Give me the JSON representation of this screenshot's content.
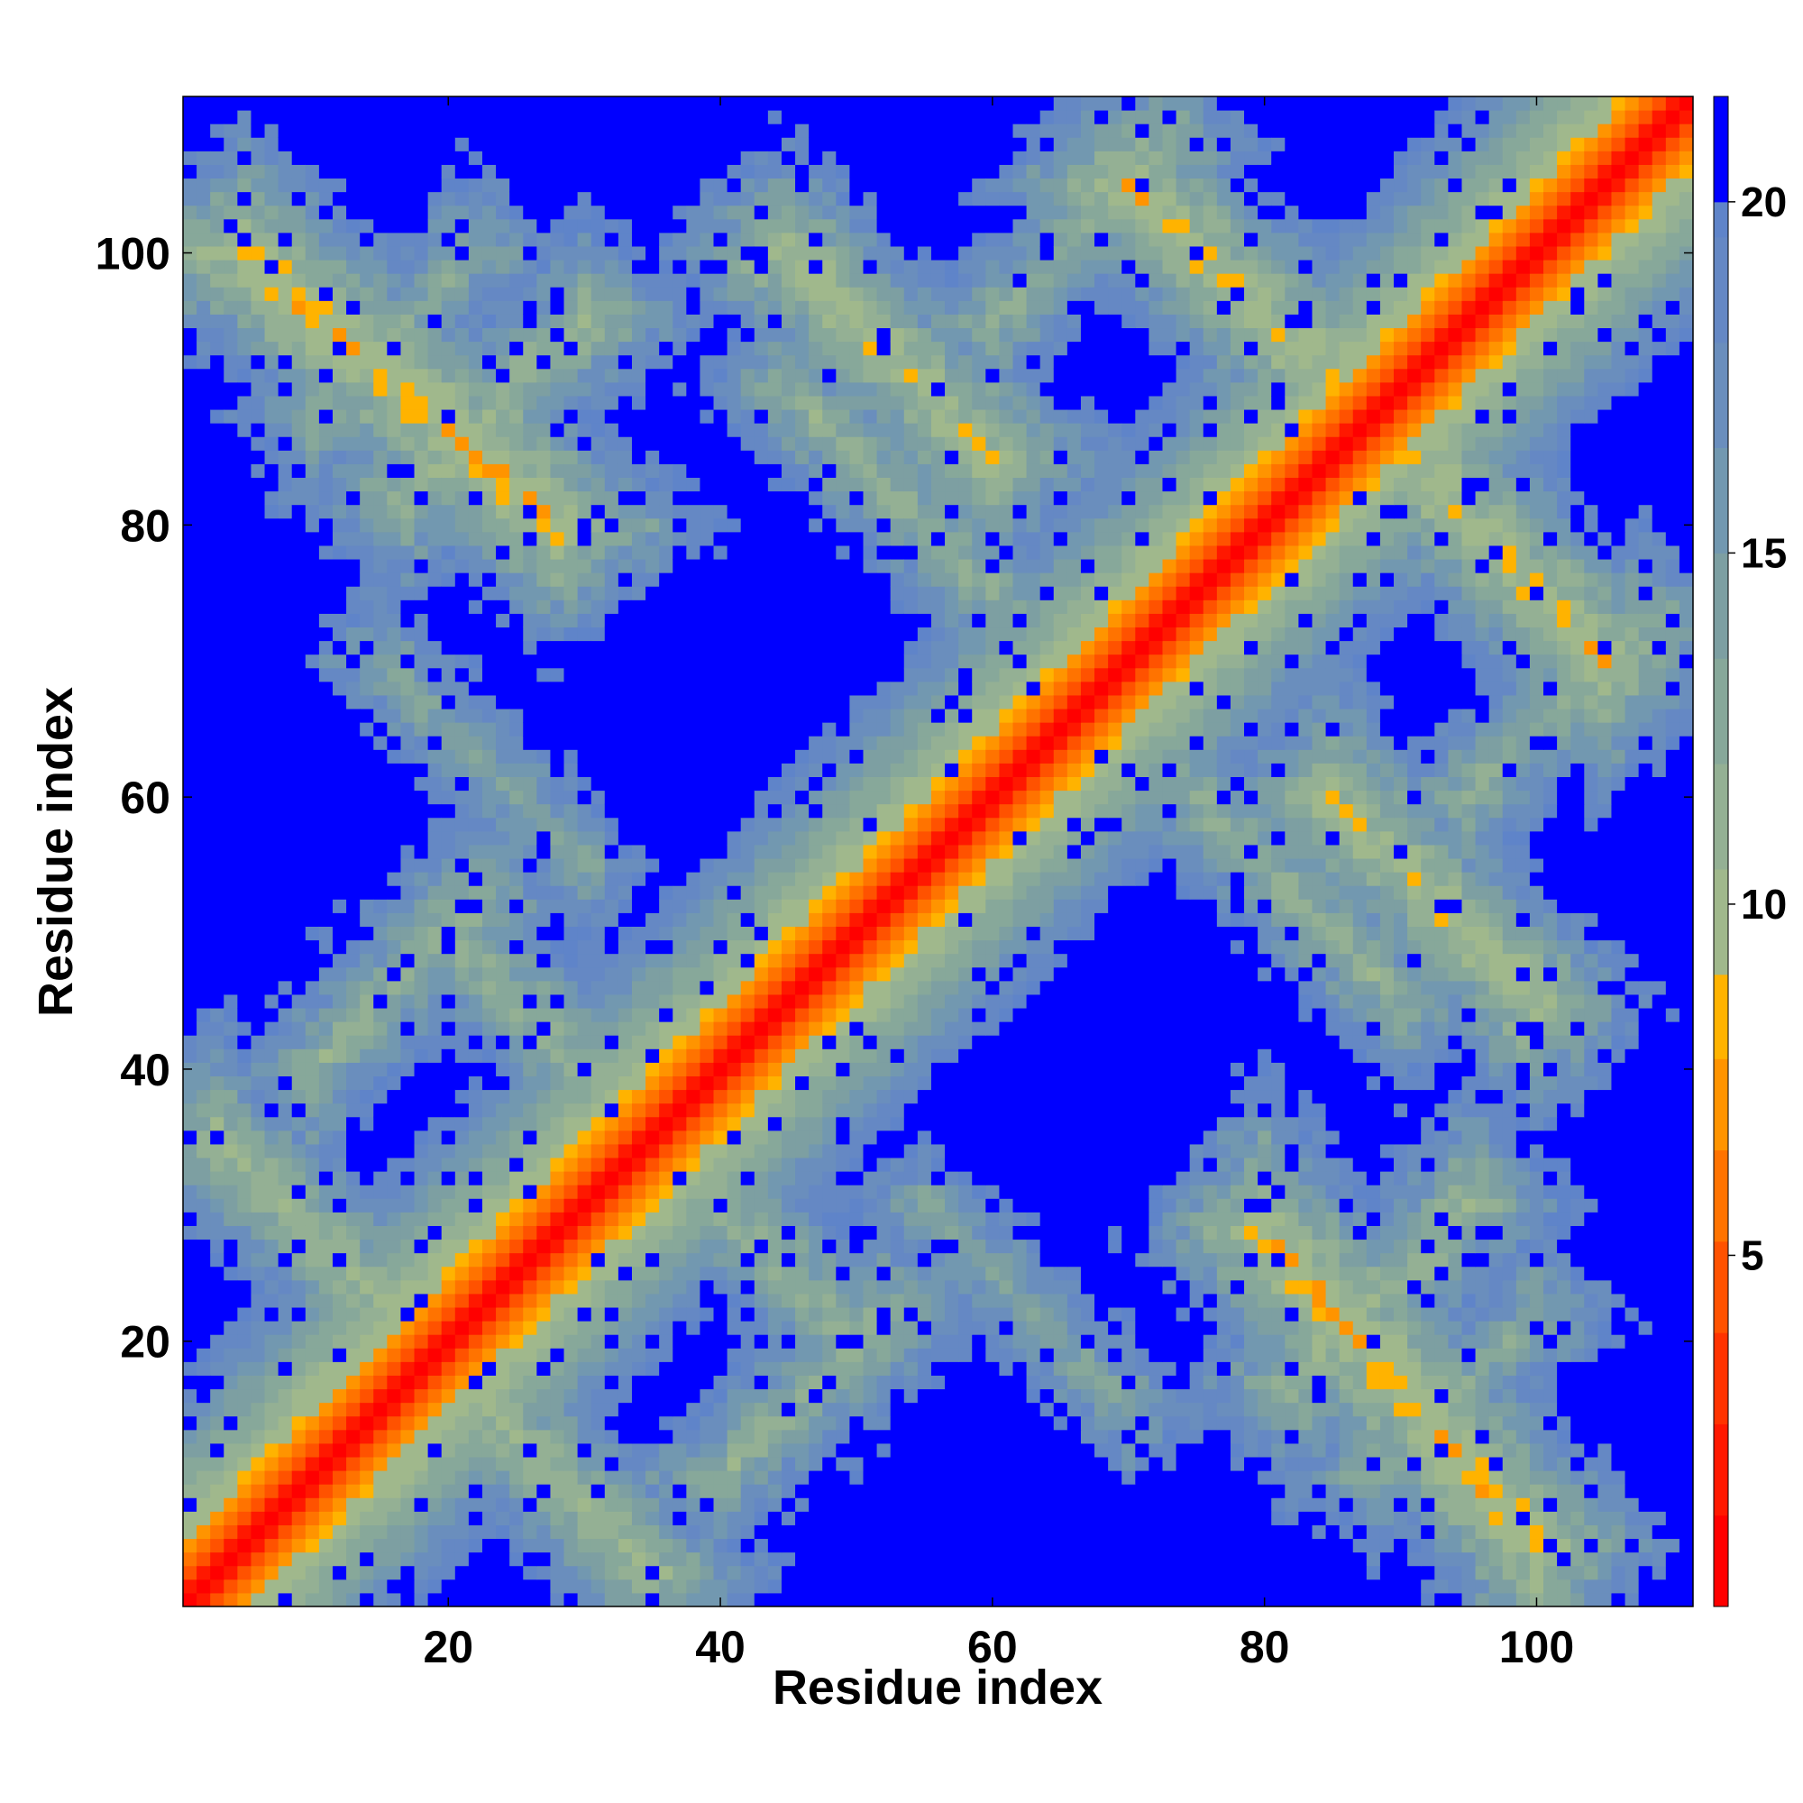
{
  "chart_data": {
    "type": "heatmap",
    "title": "",
    "xlabel": "Residue index",
    "ylabel": "Residue index",
    "n_residues": 111,
    "xlim": [
      0.5,
      111.5
    ],
    "ylim": [
      0.5,
      111.5
    ],
    "x_ticks": [
      20,
      40,
      60,
      80,
      100
    ],
    "y_ticks": [
      20,
      40,
      60,
      80,
      100
    ],
    "x_tick_labels": [
      "20",
      "40",
      "60",
      "80",
      "100"
    ],
    "y_tick_labels": [
      "20",
      "40",
      "60",
      "80",
      "100"
    ],
    "colorbar": {
      "range": [
        0,
        21.5
      ],
      "ticks": [
        5,
        10,
        15,
        20
      ],
      "tick_labels": [
        "5",
        "10",
        "15",
        "20"
      ],
      "levels": [
        {
          "max": 1.3,
          "color": "#ff0000"
        },
        {
          "max": 2.6,
          "color": "#ff1800"
        },
        {
          "max": 3.9,
          "color": "#ff3300"
        },
        {
          "max": 5.2,
          "color": "#ff5200"
        },
        {
          "max": 6.5,
          "color": "#ff7300"
        },
        {
          "max": 7.8,
          "color": "#ff9400"
        },
        {
          "max": 9.0,
          "color": "#ffb300"
        },
        {
          "max": 10.5,
          "color": "#a0b88c"
        },
        {
          "max": 12.0,
          "color": "#94b094"
        },
        {
          "max": 13.5,
          "color": "#87a89a"
        },
        {
          "max": 15.0,
          "color": "#7d9fa2"
        },
        {
          "max": 16.5,
          "color": "#7298b0"
        },
        {
          "max": 18.0,
          "color": "#6a8ebd"
        },
        {
          "max": 19.5,
          "color": "#6588c4"
        },
        {
          "max": 20.0,
          "color": "#5f84c9"
        },
        {
          "max": 21.5,
          "color": "#0000ff"
        }
      ]
    },
    "contact_segments": [
      {
        "type": "antiparallel",
        "i": [
          5,
          28
        ],
        "j": [
          100,
          80
        ],
        "distance": 8.5
      },
      {
        "type": "antiparallel",
        "i": [
          3,
          35
        ],
        "j": [
          35,
          3
        ],
        "distance": 11.0
      },
      {
        "type": "parallel",
        "i": [
          17,
          30
        ],
        "j": [
          82,
          95
        ],
        "distance": 11.0
      },
      {
        "type": "antiparallel",
        "i": [
          45,
          60
        ],
        "j": [
          100,
          85
        ],
        "distance": 9.5
      },
      {
        "type": "antiparallel",
        "i": [
          70,
          88
        ],
        "j": [
          105,
          88
        ],
        "distance": 9.0
      },
      {
        "type": "antiparallel",
        "i": [
          20,
          30
        ],
        "j": [
          50,
          40
        ],
        "distance": 11.5
      },
      {
        "type": "parallel",
        "i": [
          40,
          52
        ],
        "j": [
          10,
          22
        ],
        "distance": 12.0
      },
      {
        "type": "antiparallel",
        "i": [
          75,
          90
        ],
        "j": [
          60,
          45
        ],
        "distance": 12.0
      },
      {
        "type": "parallel",
        "i": [
          88,
          100
        ],
        "j": [
          10,
          22
        ],
        "distance": 13.0
      },
      {
        "type": "antiparallel",
        "i": [
          55,
          70
        ],
        "j": [
          30,
          15
        ],
        "distance": 13.5
      },
      {
        "type": "parallel",
        "i": [
          95,
          108
        ],
        "j": [
          60,
          73
        ],
        "distance": 12.0
      }
    ]
  }
}
